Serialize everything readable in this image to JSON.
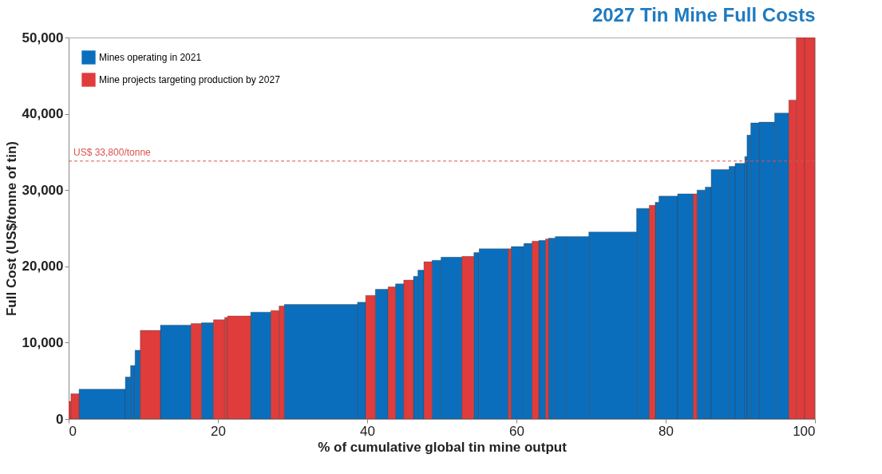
{
  "chart_data": {
    "type": "histogram",
    "title": "2027 Tin Mine Full Costs",
    "xlabel": "% of cumulative global tin mine output",
    "ylabel": "Full Cost (US$/tonne of tin)",
    "bins": [
      0,
      0.3,
      1.4,
      7.6,
      8.3,
      8.9,
      9.6,
      12.3,
      16.4,
      17.8,
      19.4,
      20.9,
      21.3,
      24.4,
      27.1,
      28.2,
      28.9,
      38.7,
      39.8,
      41.1,
      42.8,
      43.8,
      44.9,
      46.2,
      46.8,
      47.6,
      48.7,
      49.9,
      52.7,
      54.3,
      55.0,
      58.9,
      59.3,
      61.0,
      62.1,
      63.0,
      63.9,
      64.3,
      65.2,
      66.6,
      69.7,
      76.1,
      77.8,
      78.6,
      79.1,
      81.6,
      83.7,
      84.2,
      85.3,
      86.1,
      88.5,
      89.3,
      90.6,
      90.9,
      91.4,
      92.5,
      94.6,
      96.5,
      97.5,
      98.6,
      100
    ],
    "series": [
      {
        "name": "Mines operating in 2021",
        "color": "#0a6ebd",
        "values": [
          null,
          null,
          3900,
          5500,
          7000,
          9000,
          null,
          12300,
          null,
          12600,
          null,
          null,
          null,
          14000,
          null,
          null,
          15000,
          15300,
          null,
          17000,
          null,
          17700,
          null,
          18700,
          19500,
          null,
          20800,
          21200,
          null,
          21800,
          22300,
          null,
          22600,
          23000,
          null,
          23400,
          null,
          23700,
          23900,
          23900,
          24500,
          27600,
          null,
          28400,
          29200,
          29500,
          null,
          30000,
          30400,
          32700,
          33100,
          33500,
          34400,
          37200,
          38800,
          38900,
          40100,
          null,
          null,
          null
        ]
      },
      {
        "name": "Mine projects targeting production by 2027",
        "color": "#e03c3c",
        "values": [
          2300,
          3300,
          null,
          null,
          null,
          null,
          11600,
          null,
          12500,
          null,
          13000,
          13300,
          13500,
          null,
          14200,
          14800,
          null,
          null,
          16200,
          null,
          17300,
          null,
          18200,
          null,
          null,
          20600,
          null,
          null,
          21300,
          null,
          null,
          22300,
          null,
          null,
          23300,
          null,
          23600,
          null,
          null,
          null,
          null,
          null,
          28000,
          null,
          null,
          null,
          29500,
          null,
          null,
          null,
          null,
          null,
          null,
          null,
          null,
          null,
          null,
          41800,
          50000,
          50000
        ]
      }
    ],
    "xlim": [
      0,
      100
    ],
    "xticks": [
      0,
      20,
      40,
      60,
      80,
      100
    ],
    "ylim": [
      0,
      50000
    ],
    "yticks": [
      0,
      {
        "value": 10000,
        "label": "10,000"
      },
      {
        "value": 20000,
        "label": "20,000"
      },
      {
        "value": 30000,
        "label": "30,000"
      },
      {
        "value": 40000,
        "label": "40,000"
      },
      {
        "value": 50000,
        "label": "50,000"
      }
    ],
    "ref_lines": [
      {
        "axis": "y",
        "value": 33800,
        "label": "US$ 33,800/tonne",
        "color": "#d9534f",
        "line_style": "dashed"
      }
    ],
    "grid": false,
    "legend": "top left"
  }
}
